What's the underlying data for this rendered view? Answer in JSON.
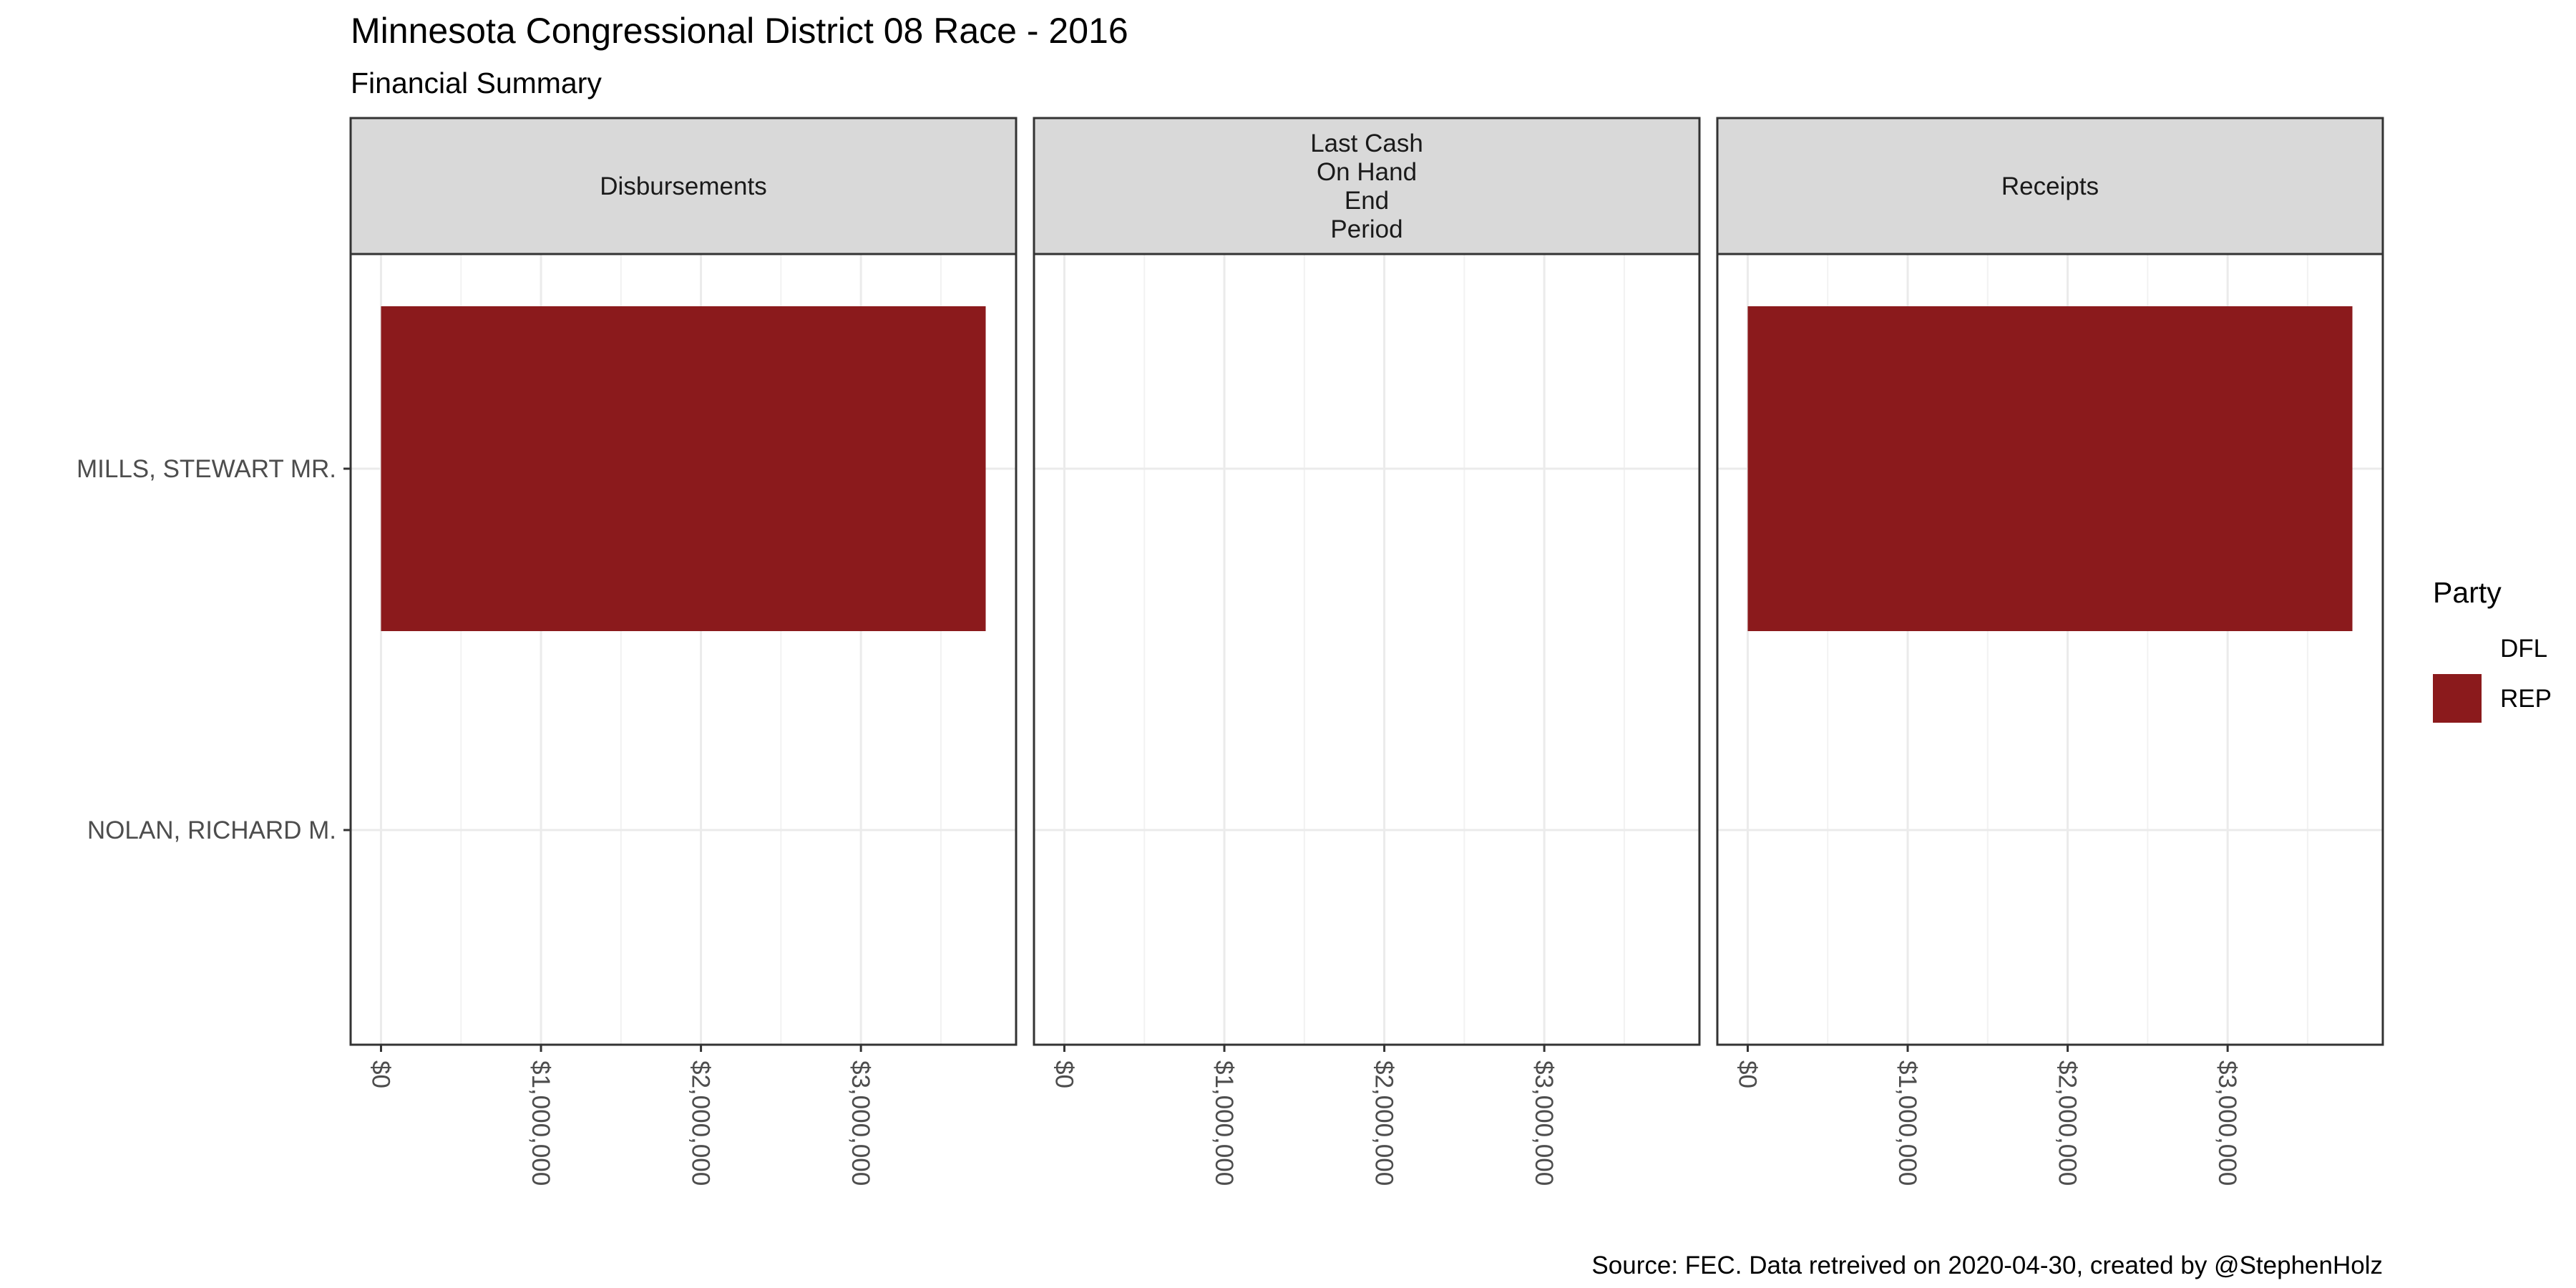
{
  "chart_data": {
    "type": "bar",
    "orientation": "horizontal",
    "title": "Minnesota Congressional District 08 Race - 2016",
    "subtitle": "Financial Summary",
    "caption": "Source: FEC. Data retreived on 2020-04-30, created by @StephenHolz",
    "facets": [
      {
        "label_lines": [
          "Disbursements"
        ]
      },
      {
        "label_lines": [
          "Last Cash",
          "On Hand",
          "End",
          "Period"
        ]
      },
      {
        "label_lines": [
          "Receipts"
        ]
      }
    ],
    "categories": [
      "MILLS, STEWART MR.",
      "NOLAN, RICHARD M."
    ],
    "series": [
      {
        "facet": 0,
        "values": [
          3780000,
          null
        ],
        "parties": [
          "REP",
          "DFL"
        ]
      },
      {
        "facet": 1,
        "values": [
          null,
          null
        ],
        "parties": [
          "REP",
          "DFL"
        ]
      },
      {
        "facet": 2,
        "values": [
          3780000,
          null
        ],
        "parties": [
          "REP",
          "DFL"
        ]
      }
    ],
    "xlim": [
      -190000,
      3970000
    ],
    "xticks": [
      0,
      1000000,
      2000000,
      3000000
    ],
    "xtick_labels": [
      "$0",
      "$1,000,000",
      "$2,000,000",
      "$3,000,000"
    ],
    "grid": true,
    "legend": {
      "title": "Party",
      "position": "right",
      "entries": [
        {
          "label": "DFL",
          "color": "#ffffff"
        },
        {
          "label": "REP",
          "color": "#8b1a1c"
        }
      ]
    }
  }
}
